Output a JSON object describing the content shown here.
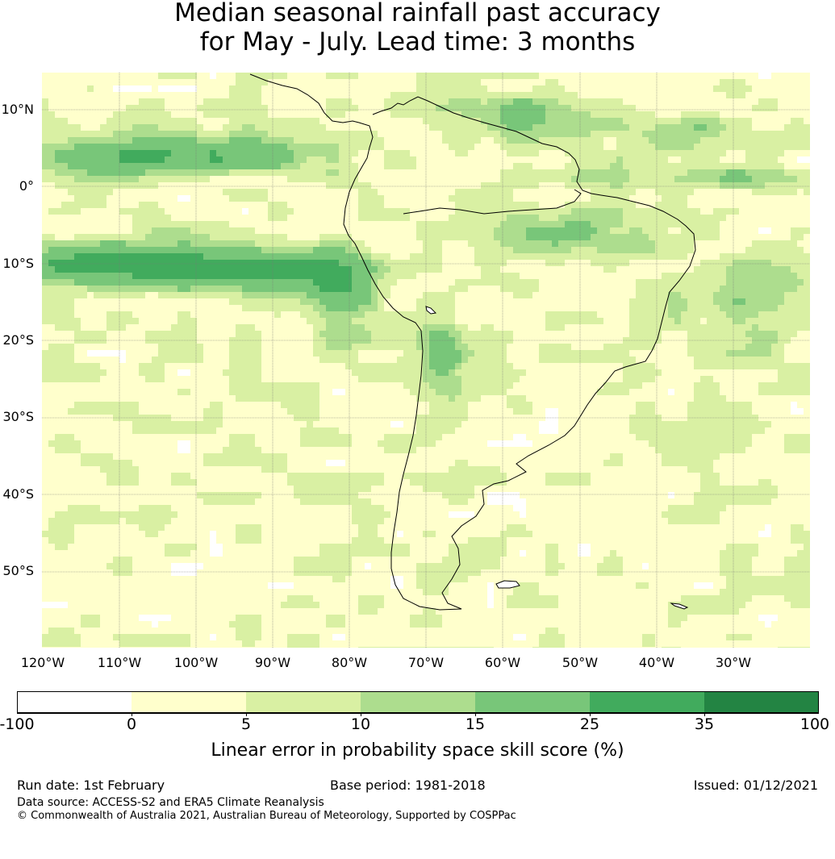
{
  "title": {
    "line1": "Median seasonal rainfall past accuracy",
    "line2": "for May - July. Lead time: 3 months"
  },
  "map": {
    "latitude_labels": [
      "10°N",
      "0°",
      "10°S",
      "20°S",
      "30°S",
      "40°S",
      "50°S"
    ],
    "longitude_labels": [
      "120°W",
      "110°W",
      "100°W",
      "90°W",
      "80°W",
      "70°W",
      "60°W",
      "50°W",
      "40°W",
      "30°W"
    ],
    "land_outline": "South America coastline"
  },
  "colorbar": {
    "colors": [
      "#ffffff",
      "#ffffcc",
      "#d9f0a3",
      "#addd8e",
      "#78c679",
      "#41ab5d",
      "#238443"
    ],
    "tick_labels": [
      "-100",
      "0",
      "5",
      "10",
      "15",
      "25",
      "35",
      "100"
    ],
    "label": "Linear error in probability space skill score (%)"
  },
  "footer": {
    "run_date": "Run date: 1st February",
    "base_period": "Base period: 1981-2018",
    "issued": "Issued: 01/12/2021",
    "data_source": "Data source: ACCESS-S2 and ERA5 Climate Reanalysis",
    "copyright": "© Commonwealth of Australia 2021, Australian Bureau of Meteorology, Supported by COSPPac"
  }
}
